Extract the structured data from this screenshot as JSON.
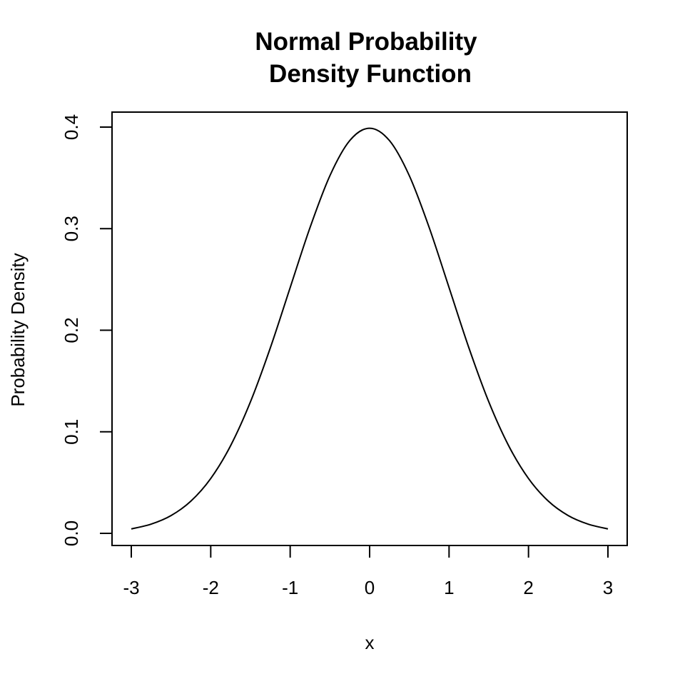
{
  "chart_data": {
    "type": "line",
    "title_lines": [
      "Normal Probability",
      "Density Function"
    ],
    "xlabel": "x",
    "ylabel": "Probability Density",
    "xlim": [
      -3,
      3
    ],
    "ylim": [
      0,
      0.4
    ],
    "x_ticks": [
      -3,
      -2,
      -1,
      0,
      1,
      2,
      3
    ],
    "x_tick_labels": [
      "-3",
      "-2",
      "-1",
      "0",
      "1",
      "2",
      "3"
    ],
    "y_ticks": [
      0.0,
      0.1,
      0.2,
      0.3,
      0.4
    ],
    "y_tick_labels": [
      "0.0",
      "0.1",
      "0.2",
      "0.3",
      "0.4"
    ],
    "grid": false,
    "line_color": "#000000",
    "series": [
      {
        "x": [
          -3.0,
          -2.75,
          -2.5,
          -2.25,
          -2.0,
          -1.75,
          -1.5,
          -1.25,
          -1.0,
          -0.75,
          -0.5,
          -0.25,
          0.0,
          0.25,
          0.5,
          0.75,
          1.0,
          1.25,
          1.5,
          1.75,
          2.0,
          2.25,
          2.5,
          2.75,
          3.0
        ],
        "values": [
          0.0044,
          0.0091,
          0.0175,
          0.0317,
          0.054,
          0.0863,
          0.1295,
          0.1826,
          0.242,
          0.3011,
          0.3521,
          0.3867,
          0.3989,
          0.3867,
          0.3521,
          0.3011,
          0.242,
          0.1826,
          0.1295,
          0.0863,
          0.054,
          0.0317,
          0.0175,
          0.0091,
          0.0044
        ]
      }
    ]
  }
}
